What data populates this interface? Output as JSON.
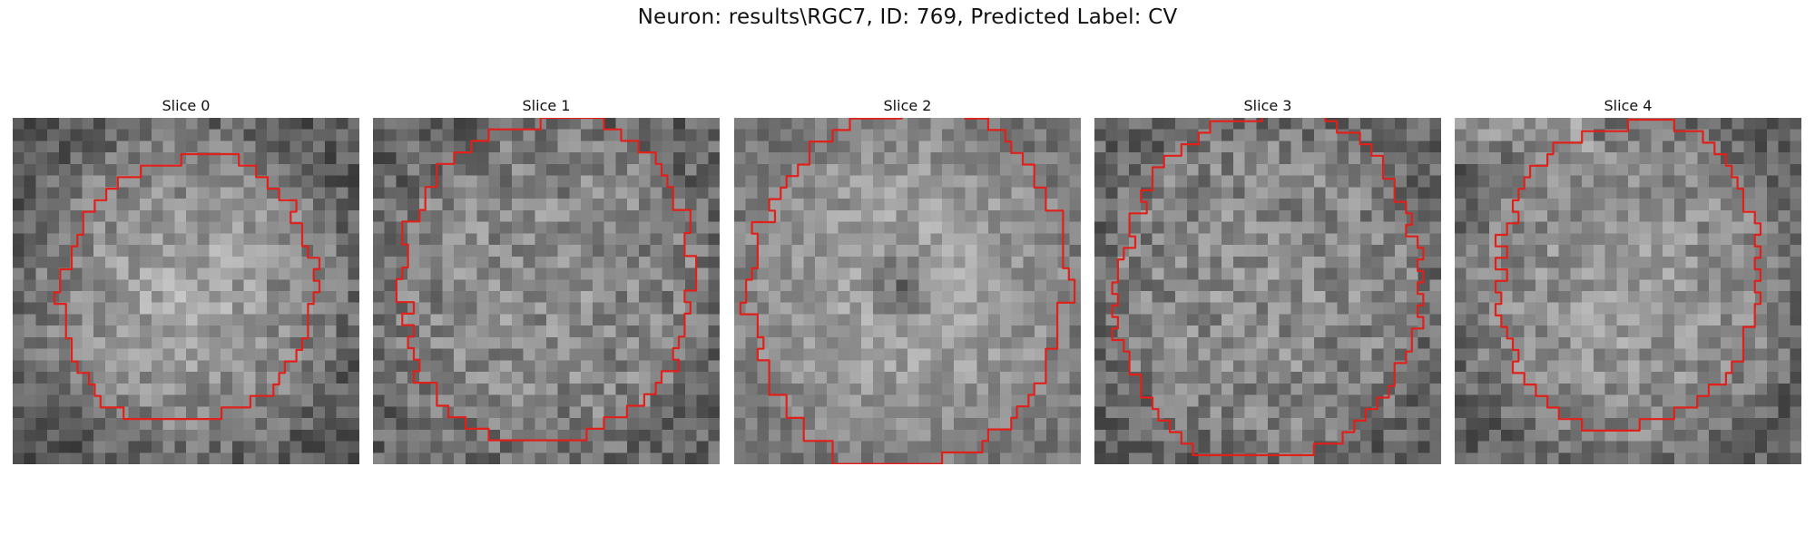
{
  "title": "Neuron: results\\RGC7, ID: 769, Predicted Label: CV",
  "contour_color": "#e0201b",
  "panels": [
    {
      "title": "Slice 0",
      "tone": "bright-center"
    },
    {
      "title": "Slice 1",
      "tone": "medium"
    },
    {
      "title": "Slice 2",
      "tone": "dark-center"
    },
    {
      "title": "Slice 3",
      "tone": "medium"
    },
    {
      "title": "Slice 4",
      "tone": "bright-top"
    }
  ]
}
